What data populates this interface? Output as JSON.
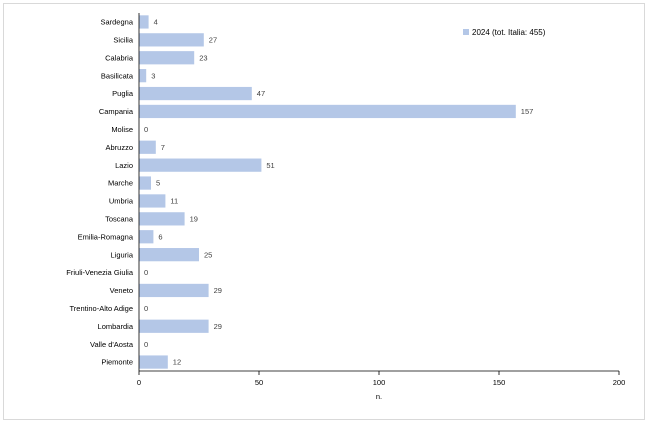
{
  "chart_data": {
    "type": "bar",
    "orientation": "horizontal",
    "categories": [
      "Sardegna",
      "Sicilia",
      "Calabria",
      "Basilicata",
      "Puglia",
      "Campania",
      "Molise",
      "Abruzzo",
      "Lazio",
      "Marche",
      "Umbria",
      "Toscana",
      "Emilia-Romagna",
      "Liguria",
      "Friuli-Venezia Giulia",
      "Veneto",
      "Trentino-Alto Adige",
      "Lombardia",
      "Valle d'Aosta",
      "Piemonte"
    ],
    "series": [
      {
        "name": "2024 (tot. Italia: 455)",
        "values": [
          4,
          27,
          23,
          3,
          47,
          157,
          0,
          7,
          51,
          5,
          11,
          19,
          6,
          25,
          0,
          29,
          0,
          29,
          0,
          12
        ]
      }
    ],
    "xlabel": "n.",
    "ylabel": "",
    "xlim": [
      0,
      200
    ],
    "xticks": [
      0,
      50,
      100,
      150,
      200
    ],
    "grid": false,
    "legend": "top-right",
    "color": "#b4c7e7"
  }
}
